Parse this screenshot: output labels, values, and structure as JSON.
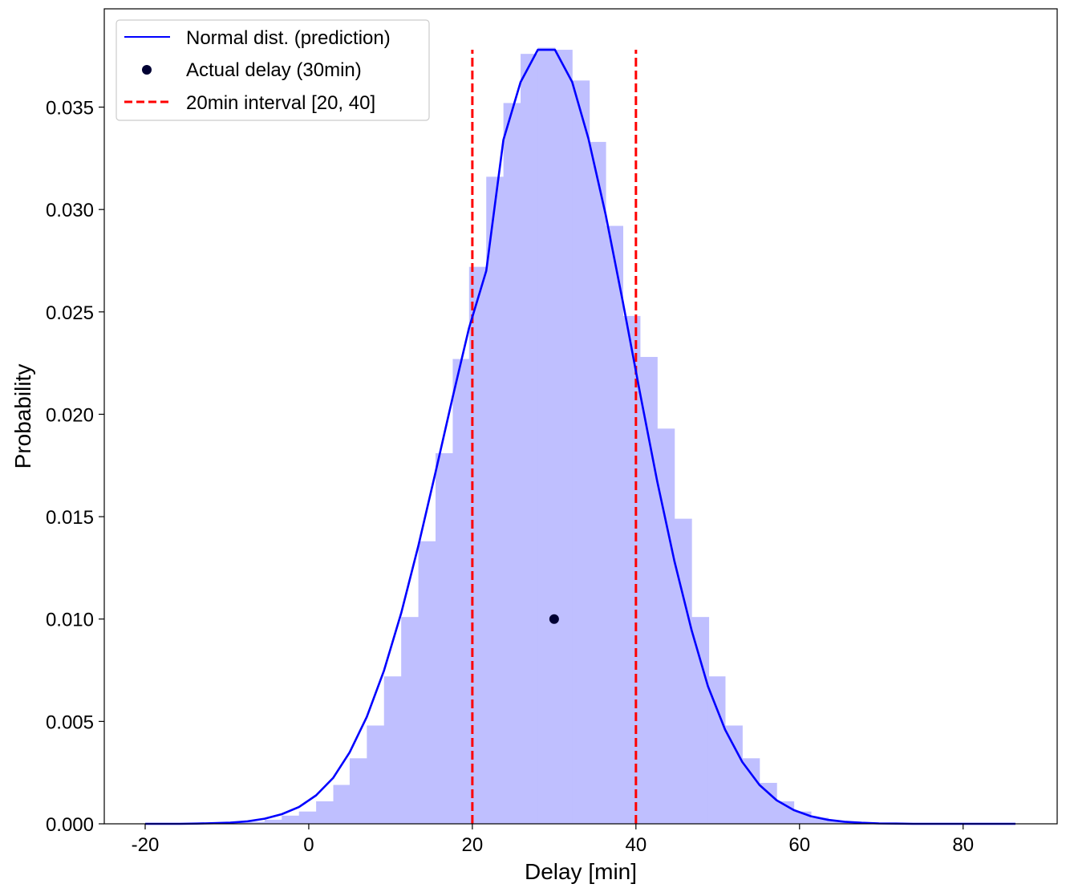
{
  "chart_data": {
    "type": "histogram",
    "title": "",
    "xlabel": "Delay [min]",
    "ylabel": "Probability",
    "xlim": [
      -25,
      91.5
    ],
    "ylim": [
      0,
      0.0398
    ],
    "x_ticks": [
      -20,
      0,
      20,
      40,
      60,
      80
    ],
    "x_tick_labels": [
      "-20",
      "0",
      "20",
      "40",
      "60",
      "80"
    ],
    "y_ticks": [
      0,
      0.005,
      0.01,
      0.015,
      0.02,
      0.025,
      0.03,
      0.035
    ],
    "y_tick_labels": [
      "0.000",
      "0.005",
      "0.010",
      "0.015",
      "0.020",
      "0.025",
      "0.030",
      "0.035"
    ],
    "grid": false,
    "legend_position": "upper-left",
    "histogram": {
      "color": "#bfbfff",
      "bin_width": 2.09,
      "bin_starts": [
        -20.0,
        -17.9,
        -15.8,
        -13.7,
        -11.6,
        -9.6,
        -7.5,
        -5.4,
        -3.3,
        -1.2,
        0.9,
        3.0,
        5.0,
        7.1,
        9.2,
        11.3,
        13.4,
        15.5,
        17.6,
        19.6,
        21.7,
        23.8,
        25.9,
        28.0,
        30.1,
        32.2,
        34.2,
        36.3,
        38.4,
        40.5,
        42.6,
        44.7,
        46.8,
        48.8,
        50.9,
        53.0,
        55.1,
        57.2,
        59.3,
        61.4,
        63.4,
        65.5,
        67.6,
        69.7,
        71.8,
        73.9,
        76.0,
        78.0,
        80.1,
        82.2,
        84.3
      ],
      "values": [
        0.0,
        0.0,
        0.0,
        0.0,
        2e-05,
        5e-05,
        0.0001,
        0.0002,
        0.0004,
        0.0006,
        0.0011,
        0.0019,
        0.0032,
        0.0048,
        0.0072,
        0.0101,
        0.0138,
        0.0181,
        0.0227,
        0.0272,
        0.0316,
        0.0352,
        0.0376,
        0.0379,
        0.0378,
        0.0363,
        0.0333,
        0.0292,
        0.0248,
        0.0228,
        0.0193,
        0.0149,
        0.0101,
        0.0072,
        0.0048,
        0.0032,
        0.002,
        0.0011,
        0.0006,
        0.0003,
        0.00015,
        7e-05,
        3e-05,
        1e-05,
        0.0,
        0.0,
        0.0,
        0.0,
        0.0,
        0.0,
        0.0
      ]
    },
    "series": [
      {
        "name": "Normal dist. (prediction)",
        "type": "line",
        "color": "#0000ff",
        "x": [
          -20.0,
          -17.9,
          -15.8,
          -13.7,
          -11.6,
          -9.6,
          -7.5,
          -5.4,
          -3.3,
          -1.2,
          0.9,
          3.0,
          5.0,
          7.1,
          9.2,
          11.3,
          13.4,
          15.5,
          17.6,
          19.6,
          21.7,
          23.8,
          25.9,
          28.0,
          30.1,
          32.2,
          34.2,
          36.3,
          38.4,
          40.5,
          42.6,
          44.7,
          46.8,
          48.8,
          50.9,
          53.0,
          55.1,
          57.2,
          59.3,
          61.4,
          63.4,
          65.5,
          67.6,
          69.7,
          71.8,
          73.9,
          76.0,
          78.0,
          80.1,
          82.2,
          84.3,
          86.4
        ],
        "y": [
          0.0,
          0.0,
          0.0,
          1e-05,
          3e-05,
          6e-05,
          0.00012,
          0.00025,
          0.00047,
          0.00082,
          0.00139,
          0.00225,
          0.00349,
          0.00522,
          0.00749,
          0.01029,
          0.01358,
          0.01717,
          0.02084,
          0.02422,
          0.027,
          0.0334,
          0.03622,
          0.0378,
          0.0378,
          0.03623,
          0.03345,
          0.02975,
          0.02549,
          0.02104,
          0.01674,
          0.01283,
          0.00946,
          0.00672,
          0.0046,
          0.00302,
          0.0019,
          0.00115,
          0.00067,
          0.00037,
          0.0002,
          0.0001,
          5e-05,
          2e-05,
          1e-05,
          0.0,
          0.0,
          0.0,
          0.0,
          0.0,
          0.0,
          0.0
        ]
      },
      {
        "name": "Actual delay (30min)",
        "type": "scatter",
        "color": "#000033",
        "x": [
          30
        ],
        "y": [
          0.01
        ]
      },
      {
        "name": "20min interval [20, 40]",
        "type": "vlines",
        "color": "#ff0000",
        "x": [
          20,
          40
        ],
        "y_range": [
          0,
          0.0378
        ]
      }
    ]
  }
}
